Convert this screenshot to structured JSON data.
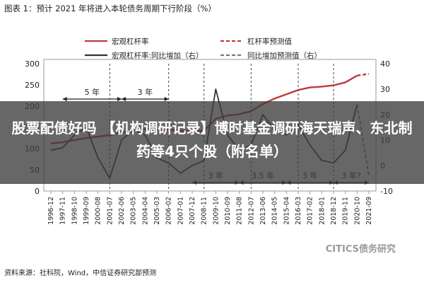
{
  "figure_title": "图表 1：预计 2021 年将进入本轮债务周期下行阶段（%）",
  "source": "资料来源：社科院，Wind，中信证券研究部预测",
  "watermark": "CITICS债务研究",
  "banner": {
    "headline": "股票配债好吗 【机构调研记录】博时基金调研海天瑞声、东北制药等4只个股（附名单）"
  },
  "colors": {
    "leverage": "#c0393b",
    "growth": "#333333",
    "accent": "#ffffff"
  },
  "chart_data": {
    "type": "line",
    "title": "",
    "x_ticks": [
      "1996-12",
      "1997-11",
      "1998-10",
      "1999-09",
      "2000-08",
      "2001-07",
      "2002-06",
      "2003-05",
      "2004-04",
      "2005-03",
      "2006-02",
      "2007-01",
      "2007-12",
      "2008-11",
      "2009-10",
      "2010-09",
      "2011-08",
      "2012-07",
      "2013-06",
      "2014-05",
      "2015-04",
      "2016-03",
      "2017-02",
      "2018-01",
      "2018-12",
      "2019-11",
      "2020-10",
      "2021-09"
    ],
    "y_left": {
      "ticks": [
        0,
        50,
        100,
        150,
        200,
        250,
        300
      ],
      "range": [
        0,
        300
      ]
    },
    "y_right": {
      "ticks": [
        -10,
        0,
        10,
        20,
        30,
        40
      ],
      "range": [
        -10,
        40
      ]
    },
    "legend": [
      {
        "label": "宏观杠杆率",
        "style": "solid",
        "color": "#c0393b"
      },
      {
        "label": "杠杆率预测值",
        "style": "dashed",
        "color": "#c0393b"
      },
      {
        "label": "宏观杠杆率:同比增加（右）",
        "style": "solid",
        "color": "#333333"
      },
      {
        "label": "同比增加预测值（右）",
        "style": "dashed",
        "color": "#777777"
      }
    ],
    "annotations": [
      "5 年",
      "3 年",
      "3 年",
      "3.5 年",
      "3 年",
      "3 年?"
    ],
    "series": [
      {
        "name": "宏观杠杆率",
        "axis": "left",
        "x": [
          "1996-12",
          "1997-11",
          "1998-10",
          "1999-09",
          "2000-08",
          "2001-07",
          "2002-06",
          "2003-05",
          "2004-04",
          "2005-03",
          "2006-02",
          "2007-01",
          "2007-12",
          "2008-11",
          "2009-10",
          "2010-09",
          "2011-08",
          "2012-07",
          "2013-06",
          "2014-05",
          "2015-04",
          "2016-03",
          "2017-02",
          "2018-01",
          "2018-12",
          "2019-11",
          "2020-10"
        ],
        "values": [
          112,
          115,
          120,
          125,
          128,
          132,
          138,
          144,
          146,
          144,
          145,
          142,
          140,
          142,
          170,
          178,
          181,
          188,
          205,
          218,
          228,
          238,
          244,
          246,
          249,
          256,
          272
        ]
      },
      {
        "name": "杠杆率预测值",
        "axis": "left",
        "x": [
          "2020-10",
          "2021-09"
        ],
        "values": [
          272,
          276
        ]
      },
      {
        "name": "宏观杠杆率:同比增加（右）",
        "axis": "right",
        "x": [
          "1996-12",
          "1997-11",
          "1998-10",
          "1999-09",
          "2000-08",
          "2001-07",
          "2002-06",
          "2003-05",
          "2004-04",
          "2005-03",
          "2006-02",
          "2007-01",
          "2007-12",
          "2008-11",
          "2009-10",
          "2010-09",
          "2011-08",
          "2012-07",
          "2013-06",
          "2014-05",
          "2015-04",
          "2016-03",
          "2017-02",
          "2018-01",
          "2018-12",
          "2019-11",
          "2020-10"
        ],
        "values": [
          6,
          7,
          12,
          15,
          3,
          -5,
          10,
          14,
          12,
          3,
          1,
          -3,
          0,
          2,
          30,
          12,
          6,
          8,
          20,
          14,
          12,
          16,
          8,
          2,
          1,
          6,
          24
        ]
      },
      {
        "name": "同比增加预测值（右）",
        "axis": "right",
        "x": [
          "2020-10",
          "2021-09"
        ],
        "values": [
          24,
          -4
        ]
      }
    ]
  }
}
